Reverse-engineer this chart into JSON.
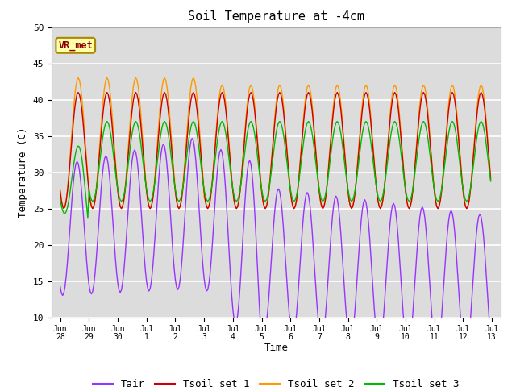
{
  "title": "Soil Temperature at -4cm",
  "xlabel": "Time",
  "ylabel": "Temperature (C)",
  "ylim": [
    10,
    50
  ],
  "background_color": "#dcdcdc",
  "colors": {
    "Tair": "#9933ff",
    "Tsoil_set1": "#cc0000",
    "Tsoil_set2": "#ff9900",
    "Tsoil_set3": "#00bb00"
  },
  "legend_labels": [
    "Tair",
    "Tsoil set 1",
    "Tsoil set 2",
    "Tsoil set 3"
  ],
  "vrmet_label": "VR_met",
  "xtick_labels": [
    "Jun\n28",
    "Jun\n29",
    "Jun\n30",
    "Jul\n1",
    "Jul\n2",
    "Jul\n3",
    "Jul\n4",
    "Jul\n5",
    "Jul\n6",
    "Jul\n7",
    "Jul\n8",
    "Jul\n9",
    "Jul\n10",
    "Jul\n11",
    "Jul\n12",
    "Jul\n13"
  ],
  "n_days": 15,
  "font_family": "monospace"
}
